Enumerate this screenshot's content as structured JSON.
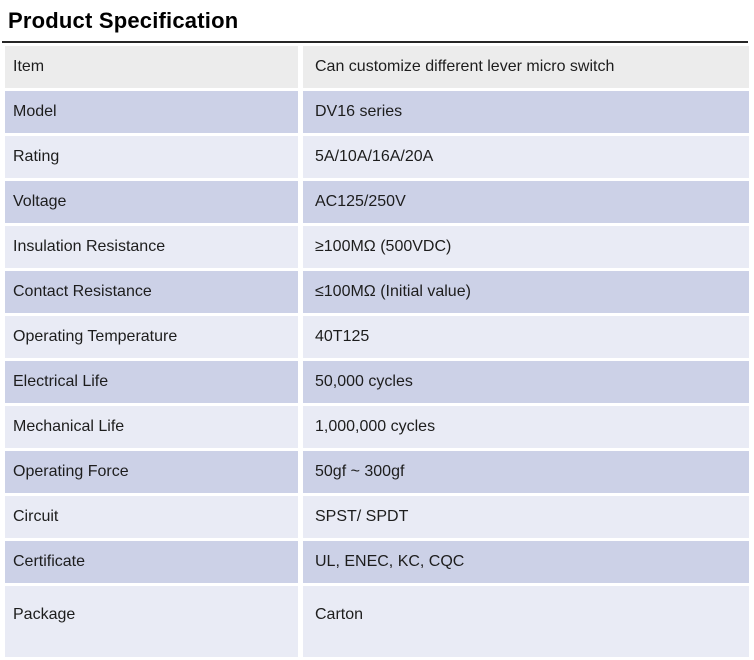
{
  "page_title": "Product Specification",
  "colors": {
    "title": "#000000",
    "rule": "#262626",
    "text": "#1d1d1d",
    "row_gray": "#ececec",
    "row_medium": "#ccd1e7",
    "row_light": "#e9ebf5"
  },
  "table": {
    "columns": [
      "item",
      "value"
    ],
    "rows": [
      {
        "label": "Item",
        "value": "Can customize different lever micro switch",
        "shade": "gray"
      },
      {
        "label": "Model",
        "value": "DV16 series",
        "shade": "medium"
      },
      {
        "label": "Rating",
        "value": "5A/10A/16A/20A",
        "shade": "light"
      },
      {
        "label": "Voltage",
        "value": "AC125/250V",
        "shade": "medium"
      },
      {
        "label": "Insulation Resistance",
        "value": "≥100MΩ (500VDC)",
        "shade": "light"
      },
      {
        "label": "Contact Resistance",
        "value": "≤100MΩ (Initial value)",
        "shade": "medium"
      },
      {
        "label": "Operating Temperature",
        "value": "40T125",
        "shade": "light"
      },
      {
        "label": "Electrical Life",
        "value": "50,000 cycles",
        "shade": "medium"
      },
      {
        "label": "Mechanical Life",
        "value": "1,000,000 cycles",
        "shade": "light"
      },
      {
        "label": "Operating Force",
        "value": "50gf ~ 300gf",
        "shade": "medium"
      },
      {
        "label": "Circuit",
        "value": "SPST/ SPDT",
        "shade": "light"
      },
      {
        "label": "Certificate",
        "value": "UL, ENEC, KC, CQC",
        "shade": "medium"
      },
      {
        "label": "Package",
        "value": "Carton",
        "shade": "light"
      }
    ]
  }
}
